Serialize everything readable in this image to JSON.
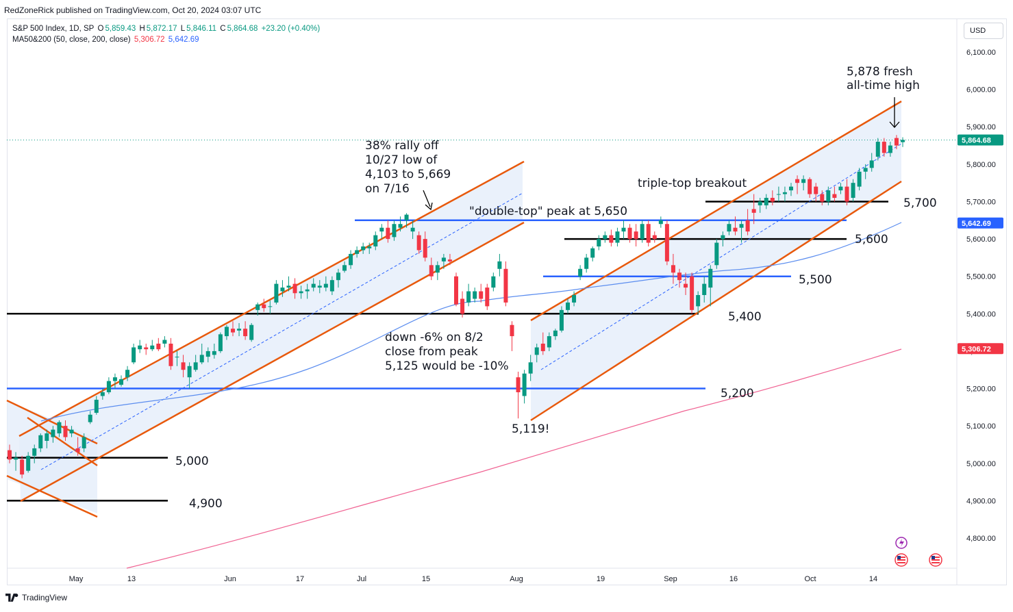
{
  "header": {
    "publisher": "RedZoneRick published on TradingView.com, Oct 20, 2024 03:07 UTC"
  },
  "legend": {
    "symbol": "S&P 500 Index, 1D, SP",
    "open_label": "O",
    "open": "5,859.43",
    "high_label": "H",
    "high": "5,872.17",
    "low_label": "L",
    "low": "5,846.11",
    "close_label": "C",
    "close": "5,864.68",
    "change": "+23.20 (+0.40%)",
    "ma_name": "MA50&200 (50, close, 200, close)",
    "ma50": "5,306.72",
    "ma200": "5,642.69"
  },
  "toolbar": {
    "currency": "USD"
  },
  "footer": {
    "brand": "TradingView"
  },
  "colors": {
    "up": "#089981",
    "down": "#f23645",
    "ma50": "#2962ff",
    "ma200": "#f06292",
    "channel": "#e8590c",
    "support_blue": "#2962ff",
    "support_black": "#000000",
    "channel_fill": "#e3ecf9"
  },
  "chart_data": {
    "type": "candlestick",
    "title": "",
    "ylim": [
      4730,
      6150
    ],
    "y_ticks": [
      "6,100.00",
      "6,000.00",
      "5,900.00",
      "5,800.00",
      "5,700.00",
      "5,600.00",
      "5,500.00",
      "5,400.00",
      "5,300.00",
      "5,200.00",
      "5,100.00",
      "5,000.00",
      "4,900.00",
      "4,800.00"
    ],
    "x_ticks": [
      "May",
      "13",
      "Jun",
      "17",
      "Jul",
      "15",
      "Aug",
      "19",
      "Sep",
      "16",
      "Oct",
      "14"
    ],
    "price_tags": [
      {
        "label": "5,864.68",
        "value": 5864.68,
        "color": "#089981"
      },
      {
        "label": "5,642.69",
        "value": 5642.69,
        "color": "#2962ff"
      },
      {
        "label": "5,306.72",
        "value": 5306.72,
        "color": "#f23645"
      }
    ],
    "annotations": {
      "rally": [
        "38% rally off",
        "10/27 low of",
        "4,103 to 5,669",
        "on 7/16"
      ],
      "double_top": "\"double-top\" peak at 5,650",
      "triple_top": "triple-top breakout",
      "ath": [
        "5,878 fresh",
        "all-time high"
      ],
      "down": [
        "down -6% on 8/2",
        "close from peak",
        "5,125  would be -10%"
      ],
      "low": "5,119!"
    },
    "levels": [
      "5,000",
      "4,900",
      "5,200",
      "5,400",
      "5,500",
      "5,600",
      "5,700"
    ],
    "candles": [
      [
        5035,
        5050,
        5000,
        5010
      ],
      [
        5010,
        5030,
        4980,
        5015
      ],
      [
        5010,
        5020,
        4960,
        4970
      ],
      [
        4980,
        5030,
        4975,
        5020
      ],
      [
        5020,
        5050,
        5000,
        5040
      ],
      [
        5040,
        5080,
        5030,
        5075
      ],
      [
        5060,
        5090,
        5040,
        5080
      ],
      [
        5070,
        5100,
        5055,
        5090
      ],
      [
        5080,
        5115,
        5070,
        5110
      ],
      [
        5100,
        5115,
        5060,
        5070
      ],
      [
        5080,
        5100,
        5070,
        5090
      ],
      [
        5040,
        5070,
        5020,
        5030
      ],
      [
        5040,
        5080,
        5030,
        5070
      ],
      [
        5110,
        5140,
        5105,
        5130
      ],
      [
        5135,
        5180,
        5130,
        5170
      ],
      [
        5180,
        5200,
        5170,
        5190
      ],
      [
        5190,
        5230,
        5185,
        5220
      ],
      [
        5220,
        5240,
        5200,
        5230
      ],
      [
        5210,
        5235,
        5205,
        5225
      ],
      [
        5230,
        5260,
        5220,
        5250
      ],
      [
        5270,
        5320,
        5265,
        5310
      ],
      [
        5305,
        5330,
        5295,
        5315
      ],
      [
        5310,
        5320,
        5290,
        5305
      ],
      [
        5305,
        5330,
        5300,
        5315
      ],
      [
        5320,
        5335,
        5300,
        5305
      ],
      [
        5320,
        5340,
        5310,
        5330
      ],
      [
        5320,
        5335,
        5250,
        5260
      ],
      [
        5285,
        5300,
        5260,
        5285
      ],
      [
        5270,
        5290,
        5230,
        5250
      ],
      [
        5230,
        5270,
        5200,
        5260
      ],
      [
        5250,
        5290,
        5245,
        5270
      ],
      [
        5270,
        5320,
        5265,
        5290
      ],
      [
        5285,
        5310,
        5270,
        5300
      ],
      [
        5290,
        5320,
        5280,
        5300
      ],
      [
        5300,
        5350,
        5295,
        5345
      ],
      [
        5340,
        5370,
        5330,
        5365
      ],
      [
        5360,
        5380,
        5340,
        5350
      ],
      [
        5355,
        5375,
        5340,
        5360
      ],
      [
        5360,
        5380,
        5330,
        5340
      ],
      [
        5330,
        5375,
        5325,
        5370
      ],
      [
        5410,
        5430,
        5395,
        5425
      ],
      [
        5425,
        5440,
        5405,
        5415
      ],
      [
        5420,
        5435,
        5400,
        5420
      ],
      [
        5430,
        5490,
        5425,
        5480
      ],
      [
        5460,
        5490,
        5445,
        5470
      ],
      [
        5470,
        5500,
        5460,
        5475
      ],
      [
        5480,
        5495,
        5440,
        5455
      ],
      [
        5455,
        5475,
        5440,
        5460
      ],
      [
        5460,
        5480,
        5440,
        5465
      ],
      [
        5470,
        5495,
        5460,
        5480
      ],
      [
        5470,
        5490,
        5455,
        5475
      ],
      [
        5470,
        5500,
        5460,
        5480
      ],
      [
        5460,
        5500,
        5450,
        5490
      ],
      [
        5490,
        5520,
        5470,
        5510
      ],
      [
        5515,
        5540,
        5510,
        5530
      ],
      [
        5530,
        5570,
        5520,
        5560
      ],
      [
        5560,
        5580,
        5550,
        5570
      ],
      [
        5570,
        5590,
        5560,
        5580
      ],
      [
        5575,
        5590,
        5560,
        5580
      ],
      [
        5580,
        5620,
        5570,
        5610
      ],
      [
        5620,
        5640,
        5600,
        5630
      ],
      [
        5630,
        5650,
        5590,
        5600
      ],
      [
        5605,
        5650,
        5595,
        5640
      ],
      [
        5630,
        5660,
        5620,
        5640
      ],
      [
        5650,
        5669,
        5630,
        5665
      ],
      [
        5620,
        5650,
        5600,
        5630
      ],
      [
        5610,
        5620,
        5560,
        5570
      ],
      [
        5600,
        5620,
        5540,
        5550
      ],
      [
        5530,
        5550,
        5490,
        5500
      ],
      [
        5510,
        5540,
        5490,
        5530
      ],
      [
        5540,
        5560,
        5520,
        5550
      ],
      [
        5545,
        5560,
        5530,
        5540
      ],
      [
        5500,
        5510,
        5420,
        5425
      ],
      [
        5440,
        5460,
        5390,
        5400
      ],
      [
        5430,
        5480,
        5420,
        5460
      ],
      [
        5440,
        5470,
        5430,
        5460
      ],
      [
        5460,
        5480,
        5430,
        5440
      ],
      [
        5470,
        5480,
        5410,
        5420
      ],
      [
        5470,
        5510,
        5460,
        5500
      ],
      [
        5520,
        5560,
        5500,
        5540
      ],
      [
        5520,
        5540,
        5420,
        5430
      ],
      [
        5370,
        5380,
        5300,
        5340
      ],
      [
        5230,
        5245,
        5120,
        5190
      ],
      [
        5180,
        5250,
        5160,
        5240
      ],
      [
        5240,
        5290,
        5220,
        5270
      ],
      [
        5290,
        5320,
        5270,
        5310
      ],
      [
        5320,
        5350,
        5290,
        5300
      ],
      [
        5310,
        5350,
        5300,
        5340
      ],
      [
        5340,
        5360,
        5330,
        5355
      ],
      [
        5355,
        5420,
        5350,
        5410
      ],
      [
        5410,
        5440,
        5400,
        5430
      ],
      [
        5430,
        5460,
        5420,
        5450
      ],
      [
        5500,
        5530,
        5490,
        5520
      ],
      [
        5520,
        5560,
        5510,
        5550
      ],
      [
        5550,
        5580,
        5540,
        5575
      ],
      [
        5580,
        5610,
        5570,
        5600
      ],
      [
        5600,
        5620,
        5590,
        5610
      ],
      [
        5610,
        5625,
        5580,
        5590
      ],
      [
        5590,
        5630,
        5580,
        5620
      ],
      [
        5620,
        5650,
        5600,
        5630
      ],
      [
        5630,
        5640,
        5590,
        5600
      ],
      [
        5620,
        5640,
        5580,
        5600
      ],
      [
        5600,
        5650,
        5590,
        5640
      ],
      [
        5640,
        5650,
        5580,
        5590
      ],
      [
        5610,
        5620,
        5590,
        5600
      ],
      [
        5640,
        5660,
        5630,
        5650
      ],
      [
        5640,
        5650,
        5530,
        5540
      ],
      [
        5530,
        5560,
        5480,
        5510
      ],
      [
        5510,
        5520,
        5470,
        5490
      ],
      [
        5480,
        5510,
        5450,
        5470
      ],
      [
        5500,
        5510,
        5400,
        5410
      ],
      [
        5420,
        5460,
        5400,
        5450
      ],
      [
        5450,
        5500,
        5430,
        5480
      ],
      [
        5470,
        5530,
        5420,
        5520
      ],
      [
        5530,
        5600,
        5520,
        5590
      ],
      [
        5600,
        5620,
        5580,
        5610
      ],
      [
        5620,
        5650,
        5610,
        5640
      ],
      [
        5630,
        5660,
        5610,
        5620
      ],
      [
        5630,
        5650,
        5590,
        5640
      ],
      [
        5650,
        5680,
        5610,
        5620
      ],
      [
        5680,
        5720,
        5640,
        5670
      ],
      [
        5690,
        5710,
        5670,
        5700
      ],
      [
        5690,
        5720,
        5680,
        5710
      ],
      [
        5710,
        5730,
        5690,
        5700
      ],
      [
        5720,
        5740,
        5700,
        5720
      ],
      [
        5720,
        5740,
        5700,
        5725
      ],
      [
        5730,
        5750,
        5715,
        5740
      ],
      [
        5760,
        5770,
        5720,
        5750
      ],
      [
        5750,
        5770,
        5730,
        5760
      ],
      [
        5760,
        5765,
        5710,
        5720
      ],
      [
        5740,
        5750,
        5700,
        5720
      ],
      [
        5720,
        5730,
        5690,
        5700
      ],
      [
        5700,
        5740,
        5690,
        5730
      ],
      [
        5720,
        5740,
        5700,
        5710
      ],
      [
        5730,
        5750,
        5720,
        5740
      ],
      [
        5740,
        5760,
        5690,
        5700
      ],
      [
        5710,
        5760,
        5700,
        5750
      ],
      [
        5740,
        5790,
        5730,
        5780
      ],
      [
        5780,
        5800,
        5760,
        5790
      ],
      [
        5790,
        5830,
        5780,
        5810
      ],
      [
        5820,
        5870,
        5810,
        5860
      ],
      [
        5860,
        5870,
        5820,
        5830
      ],
      [
        5830,
        5860,
        5820,
        5850
      ],
      [
        5870,
        5878,
        5840,
        5850
      ],
      [
        5859,
        5872,
        5846,
        5865
      ]
    ]
  }
}
